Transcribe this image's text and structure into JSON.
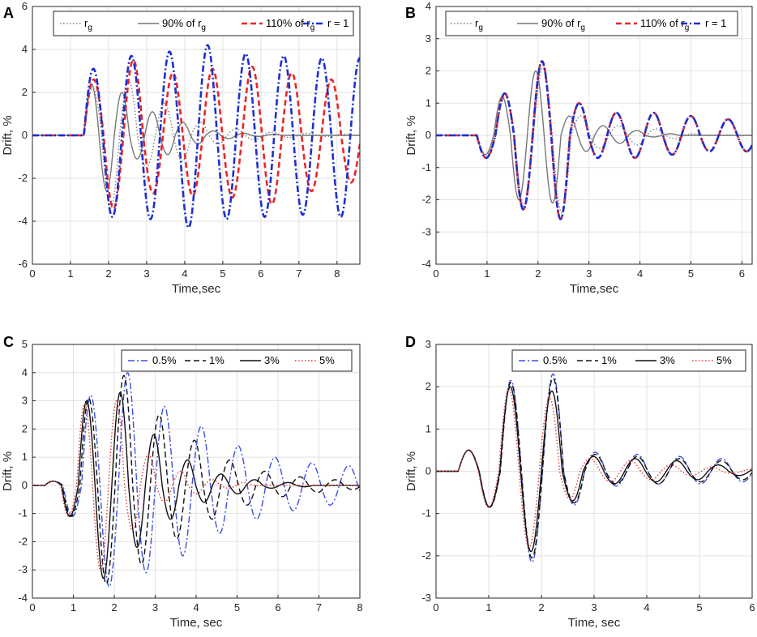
{
  "chart_data": [
    {
      "panel": "A",
      "type": "line",
      "xlabel": "Time,sec",
      "ylabel": "Drift, %",
      "xlim": [
        0,
        8.6
      ],
      "ylim": [
        -6,
        6
      ],
      "xticks": [
        "0",
        "1",
        "2",
        "3",
        "4",
        "5",
        "6",
        "7",
        "8"
      ],
      "yticks": [
        "-6",
        "-4",
        "-2",
        "0",
        "2",
        "4",
        "6"
      ],
      "legend": [
        "r_g",
        "90% of r_g",
        "110% of r_g",
        "r = 1"
      ],
      "series": [
        {
          "name": "r_g",
          "color": "#808080",
          "dash": "dotted",
          "onset": 1.35,
          "period": 0.94,
          "peaks": [
            2.2,
            -3.4,
            2.6,
            -1.5,
            1.5,
            -1.2,
            0.6,
            -0.4,
            0.3,
            -0.2,
            0.15,
            -0.1,
            0.1,
            -0.05,
            0.05,
            0,
            0,
            0
          ]
        },
        {
          "name": "90% of r_g",
          "color": "#777777",
          "dash": "solid",
          "onset": 1.35,
          "period": 0.8,
          "peaks": [
            2.4,
            -2.6,
            2.0,
            -1.1,
            1.1,
            -0.9,
            0.6,
            -0.4,
            0.2,
            -0.15,
            0.1,
            -0.05,
            0.05,
            0,
            0,
            0,
            0,
            0,
            0,
            0
          ]
        },
        {
          "name": "110% of r_g",
          "color": "#e8272a",
          "dash": "dashed",
          "onset": 1.35,
          "period": 1.04,
          "peaks": [
            2.6,
            -3.4,
            3.5,
            -2.7,
            2.9,
            -2.8,
            3.1,
            -2.9,
            3.2,
            -3.2,
            2.9,
            -2.6,
            2.6,
            -2.2,
            2.0,
            -1.9
          ]
        },
        {
          "name": "r = 1",
          "color": "#1c2fd1",
          "dash": "dashdot",
          "onset": 1.35,
          "period": 1.0,
          "peaks": [
            3.1,
            -3.8,
            3.7,
            -3.9,
            3.9,
            -4.3,
            4.2,
            -3.9,
            3.8,
            -3.8,
            3.7,
            -3.7,
            3.6,
            -3.8,
            3.6,
            -3.6
          ]
        }
      ]
    },
    {
      "panel": "B",
      "type": "line",
      "xlabel": "Time,sec",
      "ylabel": "Drift, %",
      "xlim": [
        0,
        6.2
      ],
      "ylim": [
        -4,
        4
      ],
      "xticks": [
        "0",
        "1",
        "2",
        "3",
        "4",
        "5",
        "6"
      ],
      "yticks": [
        "-4",
        "-3",
        "-2",
        "-1",
        "0",
        "1",
        "2",
        "3",
        "4"
      ],
      "legend": [
        "r_g",
        "90% of r_g",
        "110% of r_g",
        "r = 1"
      ],
      "series": [
        {
          "name": "r_g",
          "color": "#808080",
          "dash": "dotted",
          "onset": 0.8,
          "period": 0.74,
          "peaks": [
            -0.6,
            1.2,
            -2.2,
            2.1,
            -2.4,
            0.6,
            -0.4,
            0.3,
            -0.3,
            0.2,
            -0.1,
            0.05,
            0,
            0,
            0,
            0,
            0,
            0
          ]
        },
        {
          "name": "90% of r_g",
          "color": "#777777",
          "dash": "solid",
          "onset": 0.8,
          "period": 0.66,
          "peaks": [
            -0.6,
            1.2,
            -2.0,
            2.0,
            -2.1,
            0.6,
            -0.5,
            0.3,
            -0.25,
            0.15,
            -0.05,
            0.05,
            0,
            0,
            0,
            0,
            0,
            0,
            0
          ]
        },
        {
          "name": "110% of r_g",
          "color": "#e8272a",
          "dash": "dashed",
          "onset": 0.8,
          "period": 0.73,
          "peaks": [
            -0.7,
            1.3,
            -2.3,
            2.3,
            -2.6,
            1.0,
            -0.7,
            0.7,
            -0.7,
            0.7,
            -0.6,
            0.6,
            -0.5,
            0.5,
            -0.5,
            0.5
          ]
        },
        {
          "name": "r = 1",
          "color": "#1c2fd1",
          "dash": "dashdot",
          "onset": 0.8,
          "period": 0.73,
          "peaks": [
            -0.7,
            1.3,
            -2.3,
            2.3,
            -2.6,
            1.0,
            -0.7,
            0.7,
            -0.7,
            0.7,
            -0.6,
            0.6,
            -0.5,
            0.5,
            -0.5,
            0.5
          ]
        }
      ]
    },
    {
      "panel": "C",
      "type": "line",
      "xlabel": "Time, sec",
      "ylabel": "Drift, %",
      "xlim": [
        0,
        8
      ],
      "ylim": [
        -4,
        5
      ],
      "xticks": [
        "0",
        "1",
        "2",
        "3",
        "4",
        "5",
        "6",
        "7",
        "8"
      ],
      "yticks": [
        "-4",
        "-3",
        "-2",
        "-1",
        "0",
        "1",
        "2",
        "3",
        "4",
        "5"
      ],
      "legend": [
        "0.5%",
        "1%",
        "3%",
        "5%"
      ],
      "series": [
        {
          "name": "0.5%",
          "color": "#3b4fe0",
          "dash": "dashdot",
          "onset": 0.3,
          "period": 0.9,
          "peaks": [
            0.15,
            -1.1,
            3.2,
            -3.6,
            4.0,
            -3.1,
            2.8,
            -2.5,
            2.1,
            -1.7,
            1.4,
            -1.2,
            1.0,
            -0.9,
            0.8,
            -0.7,
            0.7,
            -0.6
          ]
        },
        {
          "name": "1%",
          "color": "#111111",
          "dash": "dashed",
          "onset": 0.3,
          "period": 0.86,
          "peaks": [
            0.15,
            -1.1,
            3.1,
            -3.5,
            3.9,
            -2.8,
            2.5,
            -1.9,
            1.6,
            -1.2,
            0.9,
            -0.7,
            0.5,
            -0.4,
            0.3,
            -0.25,
            0.2,
            -0.15
          ]
        },
        {
          "name": "3%",
          "color": "#111111",
          "dash": "solid",
          "onset": 0.3,
          "period": 0.82,
          "peaks": [
            0.15,
            -1.1,
            3.0,
            -3.3,
            3.3,
            -2.2,
            1.8,
            -1.2,
            0.9,
            -0.6,
            0.4,
            -0.3,
            0.2,
            -0.1,
            0.1,
            -0.05,
            0,
            0,
            0
          ]
        },
        {
          "name": "5%",
          "color": "#e03a3a",
          "dash": "dotted",
          "onset": 0.3,
          "period": 0.78,
          "peaks": [
            0.15,
            -1.1,
            2.9,
            -3.0,
            3.0,
            -1.6,
            1.1,
            -0.6,
            0.5,
            -0.3,
            0.2,
            -0.1,
            0.1,
            0,
            0,
            0,
            0,
            0,
            0,
            0
          ]
        }
      ]
    },
    {
      "panel": "D",
      "type": "line",
      "xlabel": "Time, sec",
      "ylabel": "Drift, %",
      "xlim": [
        0,
        6
      ],
      "ylim": [
        -3,
        3
      ],
      "xticks": [
        "0",
        "1",
        "2",
        "3",
        "4",
        "5",
        "6"
      ],
      "yticks": [
        "-3",
        "-2",
        "-1",
        "0",
        "1",
        "2",
        "3"
      ],
      "legend": [
        "0.5%",
        "1%",
        "3%",
        "5%"
      ],
      "series": [
        {
          "name": "0.5%",
          "color": "#3b4fe0",
          "dash": "dashdot",
          "onset": 0.42,
          "period": 0.8,
          "peaks": [
            0.5,
            -0.85,
            2.15,
            -2.15,
            2.3,
            -0.8,
            0.45,
            -0.35,
            0.4,
            -0.3,
            0.35,
            -0.3,
            0.3,
            -0.25,
            0.25,
            -0.2,
            0.15
          ]
        },
        {
          "name": "1%",
          "color": "#111111",
          "dash": "dashed",
          "onset": 0.42,
          "period": 0.8,
          "peaks": [
            0.5,
            -0.85,
            2.1,
            -2.05,
            2.2,
            -0.75,
            0.4,
            -0.3,
            0.35,
            -0.3,
            0.3,
            -0.25,
            0.25,
            -0.2,
            0.2,
            -0.15,
            0.1
          ]
        },
        {
          "name": "3%",
          "color": "#111111",
          "dash": "solid",
          "onset": 0.42,
          "period": 0.79,
          "peaks": [
            0.5,
            -0.85,
            2.0,
            -1.9,
            1.9,
            -0.7,
            0.35,
            -0.3,
            0.3,
            -0.25,
            0.25,
            -0.2,
            0.15,
            -0.1,
            0.1,
            -0.05,
            0.05
          ]
        },
        {
          "name": "5%",
          "color": "#e03a3a",
          "dash": "dotted",
          "onset": 0.42,
          "period": 0.77,
          "peaks": [
            0.5,
            -0.85,
            1.95,
            -1.8,
            1.75,
            -0.65,
            0.3,
            -0.25,
            0.25,
            -0.2,
            0.15,
            -0.1,
            0.1,
            -0.05,
            0.05,
            0,
            0
          ]
        }
      ]
    }
  ]
}
